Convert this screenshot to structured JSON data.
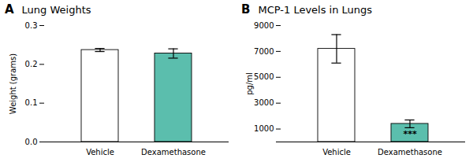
{
  "chart_data": [
    {
      "type": "bar",
      "title": "Lung Weights",
      "panel_label": "A",
      "categories": [
        "Vehicle",
        "Dexamethasone"
      ],
      "values": [
        0.237,
        0.228
      ],
      "errors": [
        0.004,
        0.012
      ],
      "colors": [
        "#ffffff",
        "#5bbead"
      ],
      "ylabel": "Weight (grams)",
      "ylim": [
        0.0,
        0.3
      ],
      "yticks": [
        {
          "value": 0.0,
          "label": "0.0"
        },
        0.1,
        0.2,
        0.3
      ],
      "grid": false
    },
    {
      "type": "bar",
      "title": "MCP-1 Levels in Lungs",
      "panel_label": "B",
      "categories": [
        "Vehicle",
        "Dexamethasone"
      ],
      "values": [
        7200,
        1400
      ],
      "errors": [
        1100,
        300
      ],
      "colors": [
        "#ffffff",
        "#5bbead"
      ],
      "ylabel": "pg/ml",
      "ylim": [
        0,
        9000
      ],
      "yticks": [
        {
          "value": 0,
          "label": null
        },
        1000,
        3000,
        5000,
        7000,
        9000
      ],
      "grid": false,
      "annotations": [
        {
          "text": "***",
          "category": "Dexamethasone"
        }
      ]
    }
  ]
}
